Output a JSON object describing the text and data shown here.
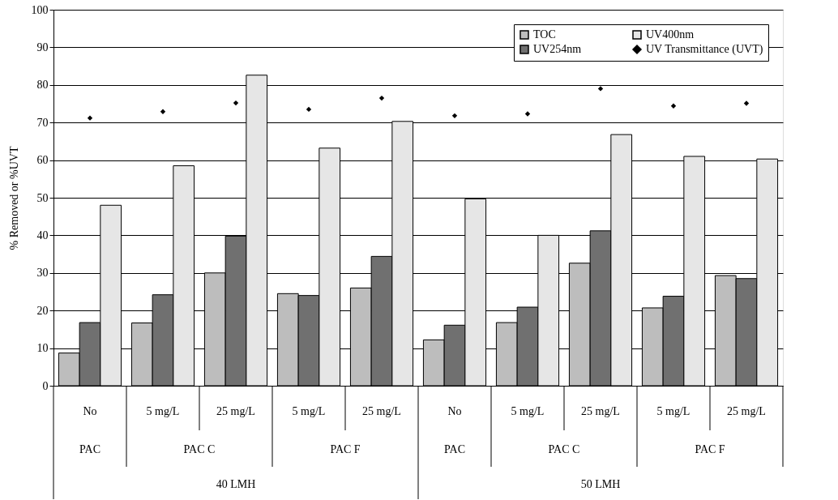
{
  "chart_data": {
    "type": "bar",
    "ylabel": "% Removed  or %UVT",
    "categories": [
      "No",
      "5 mg/L",
      "25 mg/L",
      "5 mg/L",
      "25 mg/L",
      "No",
      "5 mg/L",
      "25 mg/L",
      "5 mg/L",
      "25 mg/L"
    ],
    "series": [
      {
        "name": "TOC",
        "color": "#bdbdbd",
        "values": [
          8.7,
          16.7,
          30,
          24.5,
          26,
          12.2,
          16.8,
          32.6,
          20.7,
          29.3
        ]
      },
      {
        "name": "UV254nm",
        "color": "#707070",
        "values": [
          16.8,
          24.2,
          39.8,
          24,
          34.4,
          16.1,
          20.9,
          41.2,
          23.8,
          28.5
        ]
      },
      {
        "name": "UV400nm",
        "color": "#e6e6e6",
        "values": [
          48,
          58.5,
          82.6,
          63.2,
          70.3,
          49.7,
          40,
          66.8,
          61,
          60.3
        ]
      },
      {
        "name": "UV Transmittance (UVT)",
        "color": "#000000",
        "type": "scatter",
        "values": [
          71.2,
          72.9,
          75.2,
          73.5,
          76.5,
          71.8,
          72.3,
          79,
          74.4,
          75.1
        ]
      }
    ],
    "annotations": [
      "PAC",
      "PAC C",
      "PAC F",
      "PAC",
      "PAC C",
      "PAC F",
      "40 LMH",
      "50 LMH"
    ],
    "ylim": [
      0,
      100
    ],
    "yticks": [
      0,
      10,
      20,
      30,
      40,
      50,
      60,
      70,
      80,
      90,
      100
    ],
    "grid": "y",
    "legend": "top right",
    "marker": "diamond"
  }
}
